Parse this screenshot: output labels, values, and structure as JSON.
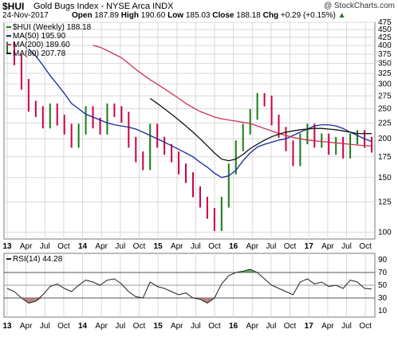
{
  "header": {
    "symbol": "$HUI",
    "name": "Gold Bugs Index - NYSE Arca INDX",
    "watermark": "@ StockCharts.com",
    "date": "24-Nov-2017",
    "open_label": "Open",
    "open": "187.89",
    "high_label": "High",
    "high": "190.60",
    "low_label": "Low",
    "low": "185.03",
    "close_label": "Close",
    "close": "188.18",
    "chg_label": "Chg",
    "chg": "+0.29 (+0.15%)",
    "chg_arrow": "▲"
  },
  "colors": {
    "price_up": "#1a7a1a",
    "price_down": "#cc0044",
    "ma50": "#1a2a9a",
    "ma200": "#cc3355",
    "ma80": "#111111",
    "grid": "#d8d8d8",
    "rsi_line": "#222222",
    "rsi_fill_over": "#3a9a3a",
    "rsi_fill_under": "#aa6666"
  },
  "chart_data": [
    {
      "type": "line",
      "title": "",
      "y_scale": "log",
      "ylim": [
        95,
        475
      ],
      "y_ticks": [
        "475",
        "450",
        "425",
        "400",
        "375",
        "350",
        "325",
        "300",
        "275",
        "250",
        "225",
        "200",
        "175",
        "150",
        "125",
        "100"
      ],
      "x_ticks": [
        "13",
        "Apr",
        "Jul",
        "Oct",
        "14",
        "Apr",
        "Jul",
        "Oct",
        "15",
        "Apr",
        "Jul",
        "Oct",
        "16",
        "Apr",
        "Jul",
        "Oct",
        "17",
        "Apr",
        "Jul",
        "Oct"
      ],
      "legend": [
        {
          "label": "$HUI (Weekly) 188.18",
          "color": "price_up"
        },
        {
          "label": "MA(50) 195.90",
          "color": "ma50"
        },
        {
          "label": "MA(200) 189.60",
          "color": "ma200"
        },
        {
          "label": "MA(80) 207.78",
          "color": "ma80"
        }
      ],
      "x": [
        "2013-01",
        "2013-03",
        "2013-04",
        "2013-05",
        "2013-06",
        "2013-07",
        "2013-08",
        "2013-09",
        "2013-10",
        "2013-12",
        "2014-01",
        "2014-03",
        "2014-04",
        "2014-06",
        "2014-07",
        "2014-08",
        "2014-09",
        "2014-10",
        "2014-11",
        "2015-01",
        "2015-02",
        "2015-03",
        "2015-05",
        "2015-06",
        "2015-07",
        "2015-08",
        "2015-09",
        "2015-10",
        "2015-11",
        "2016-01",
        "2016-02",
        "2016-03",
        "2016-04",
        "2016-05",
        "2016-06",
        "2016-07",
        "2016-08",
        "2016-09",
        "2016-10",
        "2016-11",
        "2016-12",
        "2017-01",
        "2017-02",
        "2017-03",
        "2017-04",
        "2017-05",
        "2017-06",
        "2017-07",
        "2017-08",
        "2017-09",
        "2017-10",
        "2017-11"
      ],
      "series": [
        {
          "name": "$HUI",
          "values": [
            395,
            360,
            300,
            255,
            245,
            225,
            250,
            230,
            215,
            195,
            215,
            245,
            225,
            215,
            250,
            245,
            235,
            195,
            175,
            165,
            215,
            195,
            185,
            175,
            160,
            150,
            135,
            125,
            115,
            105,
            125,
            160,
            190,
            215,
            240,
            270,
            265,
            230,
            210,
            190,
            170,
            200,
            215,
            195,
            200,
            185,
            195,
            180,
            200,
            205,
            195,
            188
          ]
        },
        {
          "name": "MA(50)",
          "values": [
            null,
            null,
            null,
            390,
            370,
            345,
            320,
            300,
            280,
            260,
            250,
            240,
            235,
            230,
            225,
            222,
            220,
            218,
            215,
            210,
            205,
            200,
            195,
            190,
            185,
            180,
            175,
            168,
            162,
            155,
            150,
            152,
            158,
            170,
            180,
            188,
            192,
            195,
            198,
            200,
            205,
            210,
            215,
            220,
            222,
            222,
            220,
            216,
            210,
            205,
            200,
            196
          ]
        },
        {
          "name": "MA(200)",
          "values": [
            null,
            null,
            null,
            null,
            null,
            null,
            null,
            null,
            null,
            null,
            null,
            null,
            400,
            395,
            385,
            375,
            365,
            350,
            335,
            322,
            310,
            300,
            290,
            280,
            270,
            260,
            252,
            245,
            240,
            235,
            232,
            230,
            228,
            226,
            224,
            220,
            216,
            212,
            208,
            205,
            202,
            200,
            198,
            197,
            196,
            195,
            194,
            193,
            192,
            191,
            190,
            189.6
          ]
        },
        {
          "name": "MA(80)",
          "values": [
            null,
            null,
            null,
            null,
            null,
            null,
            null,
            null,
            null,
            null,
            null,
            null,
            null,
            null,
            null,
            null,
            null,
            null,
            null,
            null,
            270,
            260,
            250,
            240,
            230,
            220,
            210,
            200,
            190,
            180,
            172,
            170,
            172,
            178,
            186,
            192,
            198,
            203,
            207,
            210,
            212,
            214,
            215,
            216,
            216,
            215,
            214,
            212,
            210,
            208,
            208,
            207.78
          ]
        }
      ]
    },
    {
      "type": "line",
      "title": "",
      "legend": [
        {
          "label": "RSI(14) 44.28",
          "color": "rsi_line"
        }
      ],
      "ylim": [
        0,
        100
      ],
      "y_ticks": [
        "90",
        "70",
        "50",
        "30",
        "10"
      ],
      "reference_lines": [
        30,
        50,
        70
      ],
      "x_ticks": [
        "13",
        "Apr",
        "Jul",
        "Oct",
        "14",
        "Apr",
        "Jul",
        "Oct",
        "15",
        "Apr",
        "Jul",
        "Oct",
        "16",
        "Apr",
        "Jul",
        "Oct",
        "17",
        "Apr",
        "Jul",
        "Oct"
      ],
      "values": [
        45,
        40,
        30,
        22,
        25,
        35,
        48,
        52,
        45,
        40,
        50,
        58,
        55,
        50,
        58,
        60,
        52,
        40,
        32,
        30,
        55,
        48,
        45,
        40,
        35,
        38,
        30,
        28,
        22,
        30,
        52,
        65,
        70,
        72,
        75,
        70,
        60,
        50,
        45,
        40,
        35,
        55,
        60,
        52,
        55,
        48,
        50,
        45,
        58,
        55,
        45,
        44
      ]
    }
  ]
}
